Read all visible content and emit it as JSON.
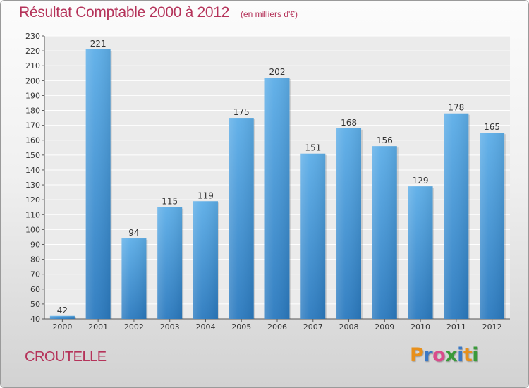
{
  "header": {
    "title": "Résultat Comptable 2000 à 2012",
    "subtitle": "(en milliers d'€)"
  },
  "footer": {
    "commune": "CROUTELLE",
    "logo": {
      "letters": [
        "P",
        "r",
        "o",
        "x",
        "i",
        "t",
        "i"
      ],
      "colors": [
        "#e8901b",
        "#3a78c5",
        "#d94a8c",
        "#3a9a3a",
        "#3a78c5",
        "#e8901b",
        "#3a9a3a"
      ]
    }
  },
  "chart_data": {
    "type": "bar",
    "categories": [
      "2000",
      "2001",
      "2002",
      "2003",
      "2004",
      "2005",
      "2006",
      "2007",
      "2008",
      "2009",
      "2010",
      "2011",
      "2012"
    ],
    "values": [
      42,
      221,
      94,
      115,
      119,
      175,
      202,
      151,
      168,
      156,
      129,
      178,
      165
    ],
    "ylim": [
      40,
      230
    ],
    "ytick_step": 10,
    "grid": true,
    "bar_color_top": "#5daee8",
    "bar_color_bottom": "#2b7abf",
    "title": "Résultat Comptable 2000 à 2012",
    "xlabel": "",
    "ylabel": ""
  }
}
